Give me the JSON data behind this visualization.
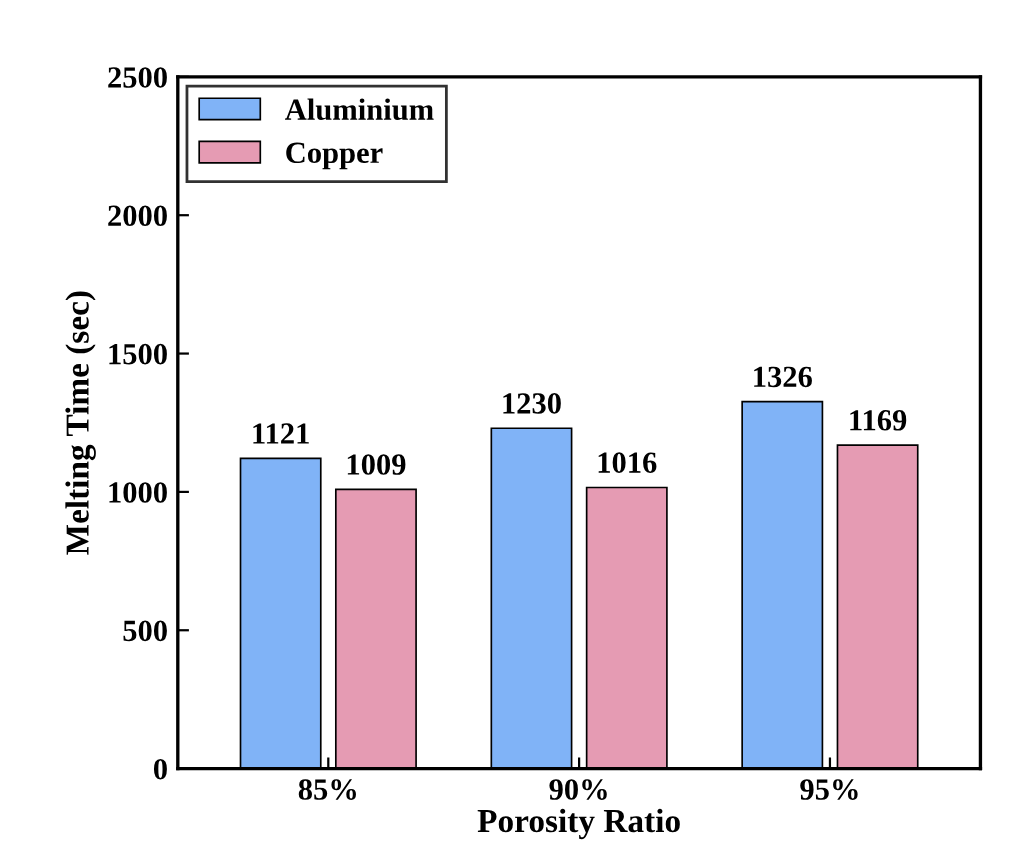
{
  "chart_data": {
    "type": "bar",
    "xlabel": "Porosity Ratio",
    "ylabel": "Melting Time (sec)",
    "categories": [
      "85%",
      "90%",
      "95%"
    ],
    "series": [
      {
        "name": "Aluminium",
        "color": "#80b3f7",
        "values": [
          1121,
          1230,
          1326
        ]
      },
      {
        "name": "Copper",
        "color": "#e59bb3",
        "values": [
          1009,
          1016,
          1169
        ]
      }
    ],
    "ylim": [
      0,
      2500
    ],
    "yticks": [
      0,
      500,
      1000,
      1500,
      2000,
      2500
    ],
    "data_labels": true,
    "legend": "top left",
    "grid": false
  }
}
